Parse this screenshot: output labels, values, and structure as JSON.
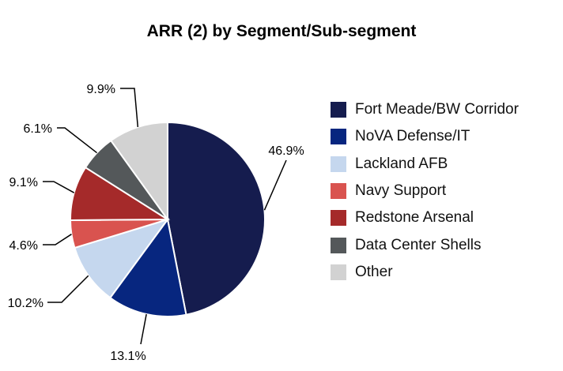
{
  "chart_data": {
    "type": "pie",
    "title": "ARR (2) by Segment/Sub-segment",
    "start": "top",
    "direction": "clockwise",
    "legend_position": "right",
    "slices": [
      {
        "label": "Fort Meade/BW Corridor",
        "value": 46.9,
        "display": "46.9%",
        "color": "#151c4e"
      },
      {
        "label": "NoVA Defense/IT",
        "value": 13.1,
        "display": "13.1%",
        "color": "#07267f"
      },
      {
        "label": "Lackland AFB",
        "value": 10.2,
        "display": "10.2%",
        "color": "#c5d7ee"
      },
      {
        "label": "Navy Support",
        "value": 4.6,
        "display": "4.6%",
        "color": "#d9534f"
      },
      {
        "label": "Redstone Arsenal",
        "value": 9.1,
        "display": "9.1%",
        "color": "#a52a2a"
      },
      {
        "label": "Data Center Shells",
        "value": 6.1,
        "display": "6.1%",
        "color": "#54585a"
      },
      {
        "label": "Other",
        "value": 9.9,
        "display": "9.9%",
        "color": "#d2d2d2"
      }
    ]
  }
}
